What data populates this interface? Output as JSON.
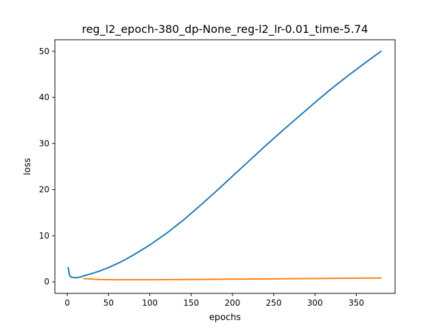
{
  "chart_data": {
    "type": "line",
    "title": "reg_l2_epoch-380_dp-None_reg-l2_lr-0.01_time-5.74",
    "xlabel": "epochs",
    "ylabel": "loss",
    "xlim": [
      -15,
      397
    ],
    "ylim": [
      -2.5,
      52.5
    ],
    "xticks": [
      0,
      50,
      100,
      150,
      200,
      250,
      300,
      350
    ],
    "yticks": [
      0,
      10,
      20,
      30,
      40,
      50
    ],
    "grid": false,
    "legend": "none",
    "series": [
      {
        "color": "#1f77b4",
        "x": [
          1,
          3,
          5,
          7,
          10,
          15,
          20,
          30,
          40,
          50,
          60,
          70,
          80,
          90,
          100,
          120,
          140,
          160,
          180,
          200,
          220,
          240,
          260,
          280,
          300,
          320,
          340,
          360,
          380
        ],
        "y": [
          3.1,
          1.3,
          1.0,
          0.95,
          0.9,
          1.0,
          1.3,
          1.8,
          2.4,
          3.1,
          3.9,
          4.8,
          5.8,
          6.9,
          8.0,
          10.5,
          13.3,
          16.4,
          19.6,
          22.9,
          26.2,
          29.5,
          32.7,
          35.8,
          38.9,
          41.9,
          44.7,
          47.4,
          50.0
        ]
      },
      {
        "color": "#ff7f0e",
        "x": [
          20,
          40,
          60,
          80,
          100,
          120,
          140,
          160,
          180,
          200,
          220,
          240,
          260,
          280,
          300,
          320,
          340,
          360,
          380
        ],
        "y": [
          0.7,
          0.5,
          0.45,
          0.45,
          0.45,
          0.47,
          0.5,
          0.52,
          0.55,
          0.58,
          0.6,
          0.63,
          0.66,
          0.7,
          0.72,
          0.75,
          0.78,
          0.8,
          0.82
        ]
      }
    ]
  }
}
